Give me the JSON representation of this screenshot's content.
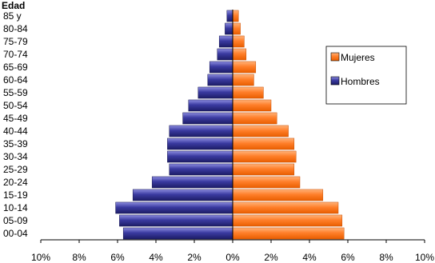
{
  "chart_data": {
    "type": "bar",
    "orientation": "horizontal",
    "layout": "population-pyramid",
    "ylabel": "Edad",
    "categories": [
      "00-04",
      "05-09",
      "10-14",
      "15-19",
      "20-24",
      "25-29",
      "30-34",
      "35-39",
      "40-44",
      "45-49",
      "50-54",
      "55-59",
      "60-64",
      "65-69",
      "70-74",
      "75-79",
      "80-84",
      "85 y"
    ],
    "series": [
      {
        "name": "Mujeres",
        "side": "right",
        "color": "#ff7f2a",
        "values": [
          5.8,
          5.7,
          5.5,
          4.7,
          3.5,
          3.2,
          3.3,
          3.2,
          2.9,
          2.3,
          2.0,
          1.6,
          1.1,
          1.2,
          0.7,
          0.6,
          0.4,
          0.3
        ]
      },
      {
        "name": "Hombres",
        "side": "left",
        "color": "#3a3aa0",
        "values": [
          5.7,
          5.9,
          6.1,
          5.2,
          4.2,
          3.3,
          3.4,
          3.4,
          3.3,
          2.6,
          2.3,
          1.8,
          1.3,
          1.2,
          0.8,
          0.7,
          0.4,
          0.3
        ]
      }
    ],
    "xlim": [
      -10,
      10
    ],
    "xticks": [
      -10,
      -8,
      -6,
      -4,
      -2,
      0,
      2,
      4,
      6,
      8,
      10
    ],
    "xtick_labels": [
      "10%",
      "8%",
      "6%",
      "4%",
      "2%",
      "0%",
      "2%",
      "4%",
      "6%",
      "8%",
      "10%"
    ],
    "grid": false,
    "legend": "right",
    "legend_entries": [
      "Mujeres",
      "Hombres"
    ]
  }
}
